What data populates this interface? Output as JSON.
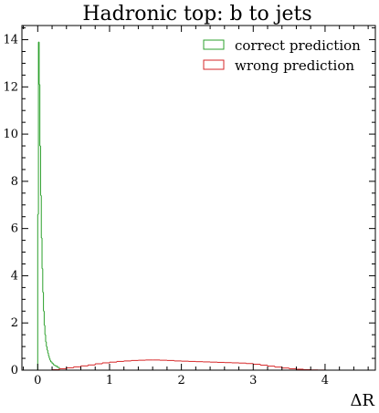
{
  "chart_data": {
    "type": "histogram",
    "title": "Hadronic top: b to jets",
    "xlabel": "ΔR",
    "ylabel": "",
    "xlim": [
      -0.22,
      4.7
    ],
    "ylim": [
      0,
      14.6
    ],
    "xticks": [
      0,
      1,
      2,
      3,
      4
    ],
    "yticks": [
      0,
      2,
      4,
      6,
      8,
      10,
      12,
      14
    ],
    "xtick_labels": [
      "0",
      "1",
      "2",
      "3",
      "4"
    ],
    "ytick_labels": [
      "0",
      "2",
      "4",
      "6",
      "8",
      "10",
      "12",
      "14"
    ],
    "grid": false,
    "legend_position": "top-right",
    "series": [
      {
        "name": "correct prediction",
        "color": "#2ca02c",
        "bin_edges": [
          0.0,
          0.01,
          0.02,
          0.03,
          0.04,
          0.05,
          0.06,
          0.07,
          0.08,
          0.09,
          0.1,
          0.11,
          0.12,
          0.13,
          0.14,
          0.15,
          0.16,
          0.17,
          0.18,
          0.2,
          0.22,
          0.24,
          0.27,
          0.3
        ],
        "values": [
          6.6,
          13.9,
          12.1,
          9.5,
          7.4,
          5.6,
          4.3,
          3.3,
          2.5,
          1.9,
          1.5,
          1.2,
          1.0,
          0.85,
          0.72,
          0.6,
          0.5,
          0.42,
          0.35,
          0.28,
          0.22,
          0.18,
          0.12
        ]
      },
      {
        "name": "wrong prediction",
        "color": "#d62728",
        "bin_edges": [
          0.2,
          0.3,
          0.4,
          0.5,
          0.6,
          0.7,
          0.8,
          0.9,
          1.0,
          1.1,
          1.2,
          1.3,
          1.4,
          1.5,
          1.6,
          1.7,
          1.8,
          1.9,
          2.0,
          2.1,
          2.2,
          2.3,
          2.4,
          2.5,
          2.6,
          2.7,
          2.8,
          2.9,
          3.0,
          3.1,
          3.2,
          3.3,
          3.4,
          3.5,
          3.6,
          3.7,
          3.8,
          3.9,
          4.0
        ],
        "values": [
          0.02,
          0.06,
          0.1,
          0.14,
          0.18,
          0.22,
          0.27,
          0.31,
          0.34,
          0.37,
          0.39,
          0.41,
          0.42,
          0.43,
          0.43,
          0.42,
          0.41,
          0.39,
          0.38,
          0.37,
          0.36,
          0.35,
          0.34,
          0.33,
          0.32,
          0.31,
          0.3,
          0.28,
          0.25,
          0.21,
          0.17,
          0.13,
          0.09,
          0.06,
          0.04,
          0.02,
          0.01,
          0.005
        ]
      }
    ]
  }
}
